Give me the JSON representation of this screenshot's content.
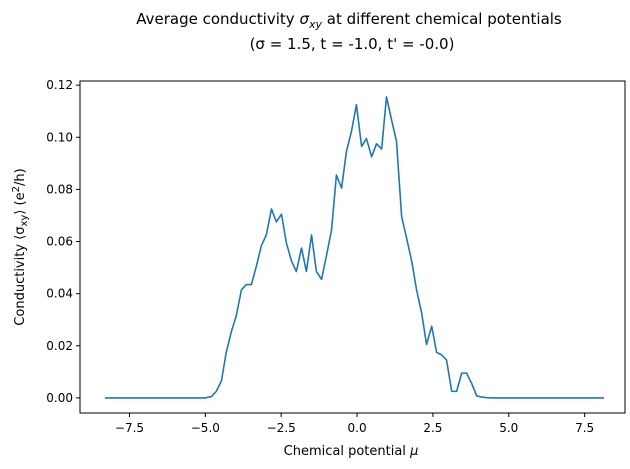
{
  "chart_data": {
    "type": "line",
    "title_line1_prefix": "Average conductivity ",
    "title_line1_symbol": "σ",
    "title_line1_sub": "xy",
    "title_line1_suffix": " at different chemical potentials",
    "title_line2": "(σ = 1.5, t = -1.0, t' = -0.0)",
    "xlabel_text": "Chemical potential ",
    "xlabel_symbol": "μ",
    "ylabel_prefix": "Conductivity ⟨σ",
    "ylabel_sub": "xy",
    "ylabel_mid": "⟩ (e",
    "ylabel_sup": "2",
    "ylabel_suffix": "/h)",
    "xlim": [
      -9.13,
      8.83
    ],
    "ylim": [
      -0.0058,
      0.1216
    ],
    "xticks": [
      -7.5,
      -5.0,
      -2.5,
      0.0,
      2.5,
      5.0,
      7.5
    ],
    "xtick_labels": [
      "−7.5",
      "−5.0",
      "−2.5",
      "0.0",
      "2.5",
      "5.0",
      "7.5"
    ],
    "yticks": [
      0.0,
      0.02,
      0.04,
      0.06,
      0.08,
      0.1,
      0.12
    ],
    "ytick_labels": [
      "0.00",
      "0.02",
      "0.04",
      "0.06",
      "0.08",
      "0.10",
      "0.12"
    ],
    "grid": false,
    "color": "#1f77b4",
    "series": [
      {
        "x": [
          -8.31,
          -5.0,
          -4.8,
          -4.64,
          -4.47,
          -4.31,
          -4.14,
          -3.98,
          -3.81,
          -3.65,
          -3.48,
          -3.32,
          -3.15,
          -2.99,
          -2.82,
          -2.66,
          -2.49,
          -2.33,
          -2.16,
          -2.0,
          -1.83,
          -1.67,
          -1.5,
          -1.34,
          -1.17,
          -1.01,
          -0.84,
          -0.68,
          -0.51,
          -0.35,
          -0.18,
          -0.02,
          0.15,
          0.31,
          0.48,
          0.64,
          0.81,
          0.97,
          1.14,
          1.3,
          1.47,
          1.63,
          1.8,
          1.96,
          2.13,
          2.29,
          2.46,
          2.62,
          2.79,
          2.95,
          3.12,
          3.28,
          3.45,
          3.61,
          3.78,
          3.94,
          4.11,
          4.27,
          4.44,
          4.6,
          4.77,
          5.0,
          8.14
        ],
        "y": [
          0.0,
          0.0,
          0.0005,
          0.0025,
          0.0065,
          0.0175,
          0.0255,
          0.0315,
          0.0415,
          0.0435,
          0.0435,
          0.0505,
          0.0585,
          0.0625,
          0.0725,
          0.0675,
          0.0705,
          0.0595,
          0.0525,
          0.0485,
          0.0575,
          0.0485,
          0.0625,
          0.0485,
          0.0455,
          0.0545,
          0.0645,
          0.0855,
          0.0805,
          0.0945,
          0.1025,
          0.1125,
          0.0965,
          0.0995,
          0.0925,
          0.0975,
          0.0955,
          0.1155,
          0.1065,
          0.0985,
          0.0695,
          0.0615,
          0.0525,
          0.0415,
          0.0325,
          0.0205,
          0.0275,
          0.0175,
          0.0165,
          0.0145,
          0.0025,
          0.0025,
          0.0095,
          0.0095,
          0.0055,
          0.0008,
          0.0003,
          0.0001,
          0.0,
          0.0,
          0.0,
          0.0,
          0.0
        ]
      }
    ]
  }
}
